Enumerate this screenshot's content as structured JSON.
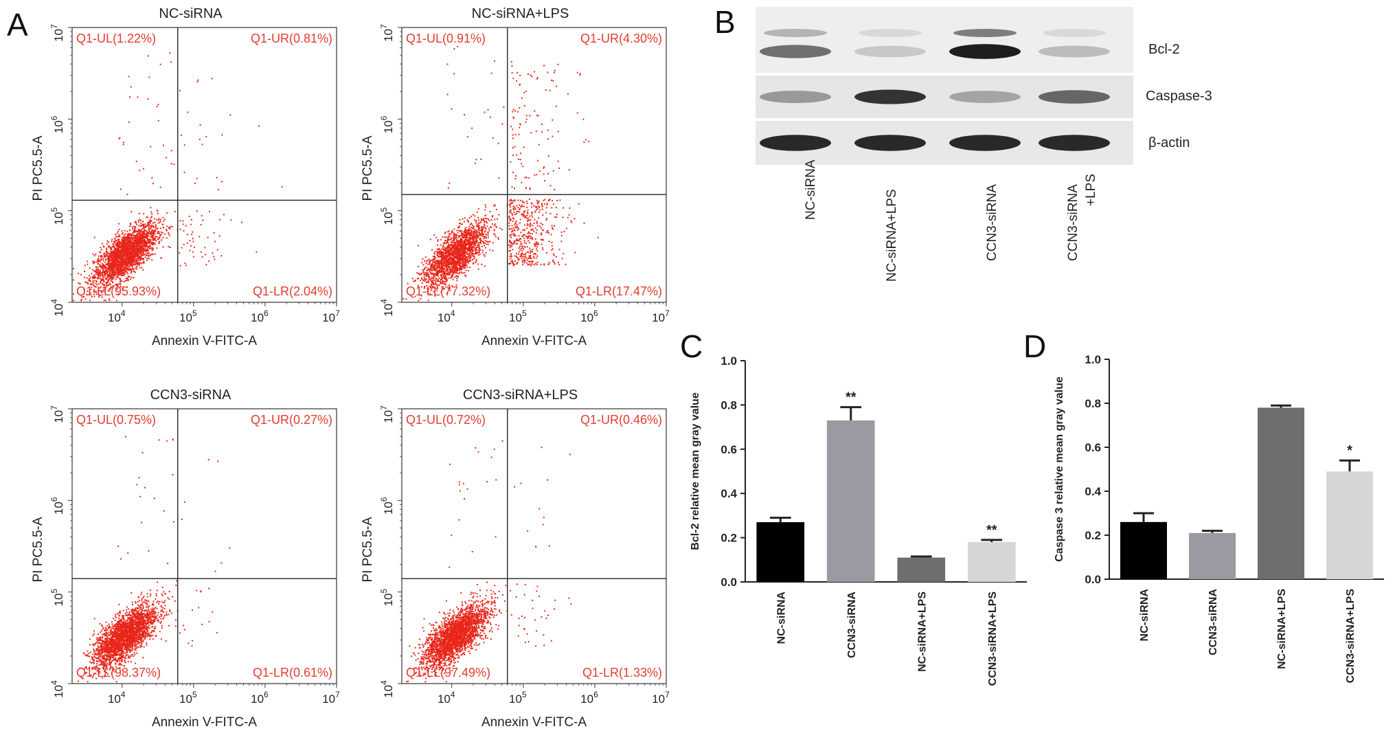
{
  "panels": {
    "A": "A",
    "B": "B",
    "C": "C",
    "D": "D"
  },
  "chart_data": [
    {
      "type": "scatter",
      "panel": "A",
      "title": "NC-siRNA",
      "xlabel": "Annexin V-FITC-A",
      "ylabel": "PI PC5.5-A",
      "scale": "log",
      "xlim": [
        2000,
        10000000
      ],
      "ylim": [
        10000,
        10000000
      ],
      "xticks": [
        "10",
        "10",
        "10",
        "10"
      ],
      "xtick_exps": [
        "4",
        "5",
        "6",
        "7"
      ],
      "yticks": [
        "10",
        "10",
        "10",
        "10"
      ],
      "ytick_exps": [
        "4",
        "5",
        "6",
        "7"
      ],
      "gate": {
        "x": 60000,
        "y": 130000
      },
      "quadrants": {
        "UL": "Q1-UL(1.22%)",
        "UR": "Q1-UR(0.81%)",
        "LL": "Q1-LL(95.93%)",
        "LR": "Q1-LR(2.04%)"
      },
      "quadrant_percent": {
        "UL": 1.22,
        "UR": 0.81,
        "LL": 95.93,
        "LR": 2.04
      },
      "point_color": "#e8261a"
    },
    {
      "type": "scatter",
      "panel": "A",
      "title": "NC-siRNA+LPS",
      "xlabel": "Annexin V-FITC-A",
      "ylabel": "PI PC5.5-A",
      "scale": "log",
      "xlim": [
        2000,
        10000000
      ],
      "ylim": [
        10000,
        10000000
      ],
      "xticks": [
        "10",
        "10",
        "10",
        "10"
      ],
      "xtick_exps": [
        "4",
        "5",
        "6",
        "7"
      ],
      "yticks": [
        "10",
        "10",
        "10",
        "10"
      ],
      "ytick_exps": [
        "4",
        "5",
        "6",
        "7"
      ],
      "gate": {
        "x": 60000,
        "y": 150000
      },
      "quadrants": {
        "UL": "Q1-UL(0.91%)",
        "UR": "Q1-UR(4.30%)",
        "LL": "Q1-LL(77.32%)",
        "LR": "Q1-LR(17.47%)"
      },
      "quadrant_percent": {
        "UL": 0.91,
        "UR": 4.3,
        "LL": 77.32,
        "LR": 17.47
      },
      "point_color": "#e8261a"
    },
    {
      "type": "scatter",
      "panel": "A",
      "title": "CCN3-siRNA",
      "xlabel": "Annexin V-FITC-A",
      "ylabel": "PI PC5.5-A",
      "scale": "log",
      "xlim": [
        2000,
        10000000
      ],
      "ylim": [
        10000,
        10000000
      ],
      "xticks": [
        "10",
        "10",
        "10",
        "10"
      ],
      "xtick_exps": [
        "4",
        "5",
        "6",
        "7"
      ],
      "yticks": [
        "10",
        "10",
        "10",
        "10"
      ],
      "ytick_exps": [
        "4",
        "5",
        "6",
        "7"
      ],
      "gate": {
        "x": 60000,
        "y": 140000
      },
      "quadrants": {
        "UL": "Q1-UL(0.75%)",
        "UR": "Q1-UR(0.27%)",
        "LL": "Q1-LL(98.37%)",
        "LR": "Q1-LR(0.61%)"
      },
      "quadrant_percent": {
        "UL": 0.75,
        "UR": 0.27,
        "LL": 98.37,
        "LR": 0.61
      },
      "point_color": "#e8261a"
    },
    {
      "type": "scatter",
      "panel": "A",
      "title": "CCN3-siRNA+LPS",
      "xlabel": "Annexin V-FITC-A",
      "ylabel": "PI PC5.5-A",
      "scale": "log",
      "xlim": [
        2000,
        10000000
      ],
      "ylim": [
        10000,
        10000000
      ],
      "xticks": [
        "10",
        "10",
        "10",
        "10"
      ],
      "xtick_exps": [
        "4",
        "5",
        "6",
        "7"
      ],
      "yticks": [
        "10",
        "10",
        "10",
        "10"
      ],
      "ytick_exps": [
        "4",
        "5",
        "6",
        "7"
      ],
      "gate": {
        "x": 60000,
        "y": 140000
      },
      "quadrants": {
        "UL": "Q1-UL(0.72%)",
        "UR": "Q1-UR(0.46%)",
        "LL": "Q1-LL(97.49%)",
        "LR": "Q1-LR(1.33%)"
      },
      "quadrant_percent": {
        "UL": 0.72,
        "UR": 0.46,
        "LL": 97.49,
        "LR": 1.33
      },
      "point_color": "#e8261a"
    },
    {
      "type": "bar",
      "panel": "C",
      "categories": [
        "NC-siRNA",
        "CCN3-siRNA",
        "NC-siRNA+LPS",
        "CCN3-siRNA+LPS"
      ],
      "values": [
        0.27,
        0.73,
        0.11,
        0.18
      ],
      "errors": [
        0.02,
        0.06,
        0.005,
        0.01
      ],
      "significance": [
        "",
        "**",
        "",
        "**"
      ],
      "colors": [
        "#000000",
        "#9a9aa2",
        "#6e6e6e",
        "#d6d6d6"
      ],
      "ylabel": "Bcl-2 relative mean gray value",
      "ylim": [
        0,
        1.0
      ],
      "yticks": [
        "0.0",
        "0.2",
        "0.4",
        "0.6",
        "0.8",
        "1.0"
      ]
    },
    {
      "type": "bar",
      "panel": "D",
      "categories": [
        "NC-siRNA",
        "CCN3-siRNA",
        "NC-siRNA+LPS",
        "CCN3-siRNA+LPS"
      ],
      "values": [
        0.26,
        0.21,
        0.78,
        0.49
      ],
      "errors": [
        0.04,
        0.01,
        0.01,
        0.05
      ],
      "significance": [
        "",
        "",
        "",
        "*"
      ],
      "colors": [
        "#000000",
        "#9a9aa2",
        "#6e6e6e",
        "#d6d6d6"
      ],
      "ylabel": "Caspase 3 relative mean gray value",
      "ylim": [
        0,
        1.0
      ],
      "yticks": [
        "0.0",
        "0.2",
        "0.4",
        "0.6",
        "0.8",
        "1.0"
      ]
    }
  ],
  "western_blot": {
    "bands": [
      "Bcl-2",
      "Caspase-3",
      "β-actin"
    ],
    "lanes": [
      "NC-siRNA",
      "NC-siRNA+LPS",
      "CCN3-siRNA"
    ],
    "lane4_line1": "CCN3-siRNA",
    "lane4_line2": "+LPS",
    "intensity": {
      "Bcl-2": [
        0.55,
        0.12,
        0.95,
        0.18
      ],
      "Caspase-3": [
        0.35,
        0.85,
        0.3,
        0.6
      ],
      "β-actin": [
        0.9,
        0.9,
        0.9,
        0.9
      ]
    }
  }
}
